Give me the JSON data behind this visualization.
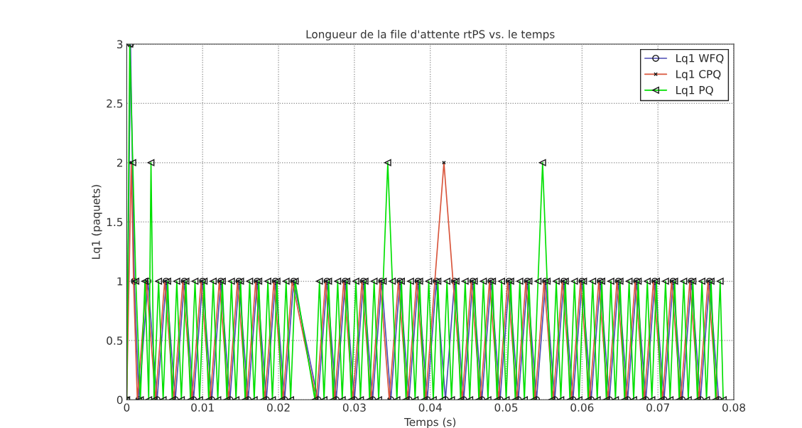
{
  "chart_data": {
    "type": "line",
    "title": "Longueur de la file d'attente rtPS vs. le temps",
    "xlabel": "Temps (s)",
    "ylabel": "Lq1 (paquets)",
    "xlim": [
      0,
      0.08
    ],
    "xticks": [
      0,
      0.01,
      0.02,
      0.03,
      0.04,
      0.05,
      0.06,
      0.07,
      0.08
    ],
    "ylim": [
      0,
      3
    ],
    "yticks": [
      0,
      0.5,
      1,
      1.5,
      2,
      2.5,
      3
    ],
    "grid": true,
    "legend": "top right",
    "line_style": "solid",
    "series": [
      {
        "name": "Lq1 WFQ",
        "color": "#4b4bb4",
        "marker": "circle",
        "x": [
          0,
          0.0005,
          0.001,
          0.0016,
          0.0028,
          0.004,
          0.0052,
          0.0064,
          0.0076,
          0.0088,
          0.01,
          0.0112,
          0.0124,
          0.0136,
          0.0148,
          0.016,
          0.0172,
          0.0184,
          0.0196,
          0.0208,
          0.022,
          0.0252,
          0.0264,
          0.0276,
          0.0288,
          0.03,
          0.0312,
          0.0324,
          0.0336,
          0.0348,
          0.036,
          0.0372,
          0.0384,
          0.0396,
          0.0408,
          0.042,
          0.0432,
          0.0444,
          0.0456,
          0.0468,
          0.048,
          0.0492,
          0.0504,
          0.0516,
          0.0528,
          0.054,
          0.0552,
          0.0564,
          0.0576,
          0.0588,
          0.06,
          0.0612,
          0.0624,
          0.0636,
          0.0648,
          0.066,
          0.0672,
          0.0684,
          0.0696,
          0.0708,
          0.072,
          0.0732,
          0.0744,
          0.0756,
          0.0768,
          0.078
        ],
        "values": [
          0,
          3,
          1,
          0,
          1,
          0,
          1,
          0,
          1,
          0,
          1,
          0,
          1,
          0,
          1,
          0,
          1,
          0,
          1,
          0,
          1,
          0,
          1,
          0,
          1,
          0,
          1,
          0,
          1,
          0,
          1,
          0,
          1,
          0,
          1,
          0,
          1,
          0,
          1,
          0,
          1,
          0,
          1,
          0,
          1,
          0,
          1,
          0,
          1,
          0,
          1,
          0,
          1,
          0,
          1,
          0,
          1,
          0,
          1,
          0,
          1,
          0,
          1,
          0,
          1,
          0
        ]
      },
      {
        "name": "Lq1 CPQ",
        "color": "#d9553b",
        "marker": "cross",
        "x": [
          0,
          0.0006,
          0.0009,
          0.0014,
          0.0026,
          0.0038,
          0.005,
          0.0062,
          0.0074,
          0.0086,
          0.0098,
          0.011,
          0.0122,
          0.0134,
          0.0146,
          0.0158,
          0.017,
          0.0182,
          0.0194,
          0.0206,
          0.0218,
          0.025,
          0.0262,
          0.0274,
          0.0286,
          0.0298,
          0.031,
          0.0322,
          0.0334,
          0.0346,
          0.0358,
          0.037,
          0.0382,
          0.0394,
          0.0406,
          0.0418,
          0.043,
          0.0442,
          0.0454,
          0.0466,
          0.0478,
          0.049,
          0.0502,
          0.0514,
          0.0526,
          0.0538,
          0.055,
          0.0562,
          0.0574,
          0.0586,
          0.0598,
          0.061,
          0.0622,
          0.0634,
          0.0646,
          0.0658,
          0.067,
          0.0682,
          0.0694,
          0.0706,
          0.0718,
          0.073,
          0.0742,
          0.0754,
          0.0766,
          0.0778
        ],
        "values": [
          0,
          2,
          1,
          0,
          1,
          0,
          1,
          0,
          1,
          0,
          1,
          0,
          1,
          0,
          1,
          0,
          1,
          0,
          1,
          0,
          1,
          0,
          1,
          0,
          1,
          0,
          1,
          0,
          1,
          0,
          1,
          0,
          1,
          0,
          1,
          2,
          1,
          0,
          1,
          0,
          1,
          0,
          1,
          0,
          1,
          0,
          1,
          0,
          1,
          0,
          1,
          0,
          1,
          0,
          1,
          0,
          1,
          0,
          1,
          0,
          1,
          0,
          1,
          0,
          1,
          0
        ]
      },
      {
        "name": "Lq1 PQ",
        "color": "#00e000",
        "marker": "triangle",
        "x": [
          0,
          0.0004,
          0.0008,
          0.0012,
          0.0018,
          0.0024,
          0.0029,
          0.0032,
          0.0036,
          0.0042,
          0.0048,
          0.0054,
          0.006,
          0.0066,
          0.0072,
          0.0078,
          0.0084,
          0.009,
          0.0096,
          0.0102,
          0.0108,
          0.0114,
          0.012,
          0.0126,
          0.0132,
          0.0138,
          0.0144,
          0.015,
          0.0156,
          0.0162,
          0.0168,
          0.0174,
          0.018,
          0.0186,
          0.0192,
          0.0198,
          0.0204,
          0.021,
          0.0216,
          0.0222,
          0.0248,
          0.0254,
          0.026,
          0.0266,
          0.0272,
          0.0278,
          0.0284,
          0.029,
          0.0296,
          0.0302,
          0.0308,
          0.0314,
          0.032,
          0.0326,
          0.0332,
          0.0338,
          0.0344,
          0.035,
          0.0356,
          0.0362,
          0.0368,
          0.0374,
          0.038,
          0.0386,
          0.0392,
          0.0398,
          0.0404,
          0.041,
          0.0416,
          0.0422,
          0.0428,
          0.0434,
          0.044,
          0.0446,
          0.0452,
          0.0458,
          0.0464,
          0.047,
          0.0476,
          0.0482,
          0.0488,
          0.0494,
          0.05,
          0.0506,
          0.0512,
          0.0518,
          0.0524,
          0.053,
          0.0536,
          0.0542,
          0.0548,
          0.0554,
          0.056,
          0.0566,
          0.0572,
          0.0578,
          0.0584,
          0.059,
          0.0596,
          0.0602,
          0.0608,
          0.0614,
          0.062,
          0.0626,
          0.0632,
          0.0638,
          0.0644,
          0.065,
          0.0656,
          0.0662,
          0.0668,
          0.0674,
          0.068,
          0.0686,
          0.0692,
          0.0698,
          0.0704,
          0.071,
          0.0716,
          0.0722,
          0.0728,
          0.0734,
          0.074,
          0.0746,
          0.0752,
          0.0758,
          0.0764,
          0.077,
          0.0776,
          0.0782,
          0.0786
        ],
        "values": [
          0,
          3,
          2,
          1,
          0,
          1,
          0,
          2,
          0,
          1,
          0,
          1,
          0,
          1,
          0,
          1,
          0,
          1,
          0,
          1,
          0,
          1,
          0,
          1,
          0,
          1,
          0,
          1,
          0,
          1,
          0,
          1,
          0,
          1,
          0,
          1,
          0,
          1,
          0,
          1,
          0,
          1,
          0,
          1,
          0,
          1,
          0,
          1,
          0,
          1,
          0,
          1,
          0,
          1,
          0,
          1,
          2,
          1,
          0,
          1,
          0,
          1,
          0,
          1,
          0,
          1,
          0,
          1,
          0,
          1,
          0,
          1,
          0,
          1,
          0,
          1,
          0,
          1,
          0,
          1,
          0,
          1,
          0,
          1,
          0,
          1,
          0,
          1,
          0,
          1,
          2,
          1,
          0,
          1,
          0,
          1,
          0,
          1,
          0,
          1,
          0,
          1,
          0,
          1,
          0,
          1,
          0,
          1,
          0,
          1,
          0,
          1,
          0,
          1,
          0,
          1,
          0,
          1,
          0,
          1,
          0,
          1,
          0,
          1,
          0,
          1,
          0,
          1,
          0,
          1,
          0
        ]
      }
    ]
  }
}
